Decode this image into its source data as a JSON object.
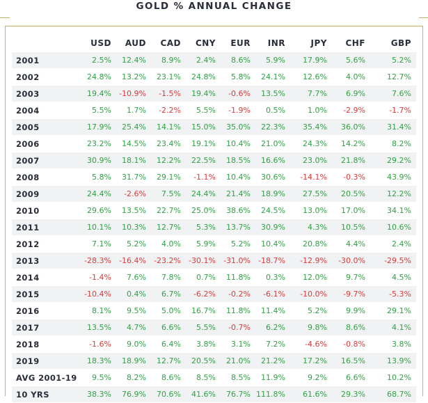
{
  "title": "GOLD % ANNUAL CHANGE",
  "colors": {
    "positive": "#2fa244",
    "negative": "#d93b3b",
    "header_text": "#2a2d3a",
    "accent_rule": "#c7ae6d",
    "stripe": "#f0f2f3"
  },
  "chart_data": {
    "type": "table",
    "title": "GOLD % ANNUAL CHANGE",
    "columns": [
      "",
      "USD",
      "AUD",
      "CAD",
      "CNY",
      "EUR",
      "INR",
      "JPY",
      "CHF",
      "GBP"
    ],
    "rows": [
      [
        "2001",
        "2.5%",
        "12.4%",
        "8.9%",
        "2.4%",
        "8.6%",
        "5.9%",
        "17.9%",
        "5.6%",
        "5.2%"
      ],
      [
        "2002",
        "24.8%",
        "13.2%",
        "23.1%",
        "24.8%",
        "5.8%",
        "24.1%",
        "12.6%",
        "4.0%",
        "12.7%"
      ],
      [
        "2003",
        "19.4%",
        "-10.9%",
        "-1.5%",
        "19.4%",
        "-0.6%",
        "13.5%",
        "7.7%",
        "6.9%",
        "7.6%"
      ],
      [
        "2004",
        "5.5%",
        "1.7%",
        "-2.2%",
        "5.5%",
        "-1.9%",
        "0.5%",
        "1.0%",
        "-2.9%",
        "-1.7%"
      ],
      [
        "2005",
        "17.9%",
        "25.4%",
        "14.1%",
        "15.0%",
        "35.0%",
        "22.3%",
        "35.4%",
        "36.0%",
        "31.4%"
      ],
      [
        "2006",
        "23.2%",
        "14.5%",
        "23.4%",
        "19.1%",
        "10.4%",
        "21.0%",
        "24.3%",
        "14.2%",
        "8.2%"
      ],
      [
        "2007",
        "30.9%",
        "18.1%",
        "12.2%",
        "22.5%",
        "18.5%",
        "16.6%",
        "23.0%",
        "21.8%",
        "29.2%"
      ],
      [
        "2008",
        "5.8%",
        "31.7%",
        "29.1%",
        "-1.1%",
        "10.4%",
        "30.6%",
        "-14.1%",
        "-0.3%",
        "43.9%"
      ],
      [
        "2009",
        "24.4%",
        "-2.6%",
        "7.5%",
        "24.4%",
        "21.4%",
        "18.9%",
        "27.5%",
        "20.5%",
        "12.2%"
      ],
      [
        "2010",
        "29.6%",
        "13.5%",
        "22.7%",
        "25.0%",
        "38.6%",
        "24.5%",
        "13.0%",
        "17.0%",
        "34.1%"
      ],
      [
        "2011",
        "10.1%",
        "10.3%",
        "12.7%",
        "5.3%",
        "13.7%",
        "30.9%",
        "4.3%",
        "10.5%",
        "10.6%"
      ],
      [
        "2012",
        "7.1%",
        "5.2%",
        "4.0%",
        "5.9%",
        "5.2%",
        "10.4%",
        "20.8%",
        "4.4%",
        "2.4%"
      ],
      [
        "2013",
        "-28.3%",
        "-16.4%",
        "-23.2%",
        "-30.1%",
        "-31.0%",
        "-18.7%",
        "-12.9%",
        "-30.0%",
        "-29.5%"
      ],
      [
        "2014",
        "-1.4%",
        "7.6%",
        "7.8%",
        "0.7%",
        "11.8%",
        "0.3%",
        "12.0%",
        "9.7%",
        "4.5%"
      ],
      [
        "2015",
        "-10.4%",
        "0.4%",
        "6.7%",
        "-6.2%",
        "-0.2%",
        "-6.1%",
        "-10.0%",
        "-9.7%",
        "-5.3%"
      ],
      [
        "2016",
        "8.1%",
        "9.5%",
        "5.0%",
        "16.7%",
        "11.8%",
        "11.4%",
        "5.2%",
        "9.9%",
        "29.1%"
      ],
      [
        "2017",
        "13.5%",
        "4.7%",
        "6.6%",
        "5.5%",
        "-0.7%",
        "6.2%",
        "9.8%",
        "8.6%",
        "4.1%"
      ],
      [
        "2018",
        "-1.6%",
        "9.0%",
        "6.4%",
        "3.8%",
        "3.1%",
        "7.2%",
        "-4.6%",
        "-0.8%",
        "3.8%"
      ],
      [
        "2019",
        "18.3%",
        "18.9%",
        "12.7%",
        "20.5%",
        "21.0%",
        "21.2%",
        "17.2%",
        "16.5%",
        "13.9%"
      ],
      [
        "AVG 2001-19",
        "9.5%",
        "8.2%",
        "8.6%",
        "8.5%",
        "8.5%",
        "11.9%",
        "9.2%",
        "6.6%",
        "10.2%"
      ],
      [
        "10 YRS",
        "38.3%",
        "76.9%",
        "70.6%",
        "41.6%",
        "76.7%",
        "111.8%",
        "61.6%",
        "29.3%",
        "68.7%"
      ]
    ]
  }
}
